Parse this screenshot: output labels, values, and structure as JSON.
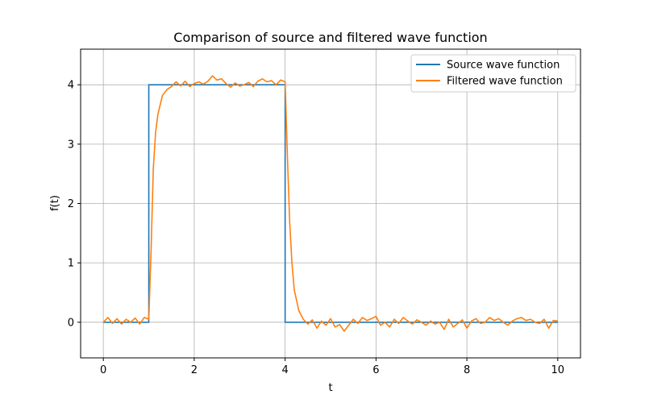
{
  "chart_data": {
    "type": "line",
    "title": "Comparison of source and filtered wave function",
    "xlabel": "t",
    "ylabel": "f(t)",
    "xlim": [
      -0.5,
      10.5
    ],
    "ylim": [
      -0.6,
      4.6
    ],
    "xticks": [
      0,
      2,
      4,
      6,
      8,
      10
    ],
    "yticks": [
      0,
      1,
      2,
      3,
      4
    ],
    "grid": true,
    "legend": "top-right",
    "series": [
      {
        "name": "Source wave function",
        "color": "#1f77b4",
        "x": [
          0,
          1,
          1,
          4,
          4,
          10
        ],
        "y": [
          0,
          0,
          4,
          4,
          0,
          0
        ]
      },
      {
        "name": "Filtered wave function",
        "color": "#ff7f0e",
        "x": [
          0,
          0.1,
          0.2,
          0.3,
          0.4,
          0.5,
          0.6,
          0.7,
          0.8,
          0.9,
          1.0,
          1.05,
          1.1,
          1.15,
          1.2,
          1.3,
          1.4,
          1.5,
          1.6,
          1.7,
          1.8,
          1.9,
          2.0,
          2.1,
          2.2,
          2.3,
          2.4,
          2.5,
          2.6,
          2.7,
          2.8,
          2.9,
          3.0,
          3.1,
          3.2,
          3.3,
          3.4,
          3.5,
          3.6,
          3.7,
          3.8,
          3.9,
          4.0,
          4.05,
          4.1,
          4.15,
          4.2,
          4.3,
          4.4,
          4.5,
          4.6,
          4.7,
          4.8,
          4.9,
          5.0,
          5.1,
          5.2,
          5.3,
          5.4,
          5.5,
          5.6,
          5.7,
          5.8,
          5.9,
          6.0,
          6.1,
          6.2,
          6.3,
          6.4,
          6.5,
          6.6,
          6.7,
          6.8,
          6.9,
          7.0,
          7.1,
          7.2,
          7.3,
          7.4,
          7.5,
          7.6,
          7.7,
          7.8,
          7.9,
          8.0,
          8.1,
          8.2,
          8.3,
          8.4,
          8.5,
          8.6,
          8.7,
          8.8,
          8.9,
          9.0,
          9.1,
          9.2,
          9.3,
          9.4,
          9.5,
          9.6,
          9.7,
          9.8,
          9.9,
          10.0
        ],
        "y": [
          0.0,
          0.08,
          -0.02,
          0.06,
          -0.03,
          0.05,
          0.0,
          0.07,
          -0.03,
          0.08,
          0.05,
          1.2,
          2.6,
          3.2,
          3.5,
          3.82,
          3.92,
          3.97,
          4.05,
          3.98,
          4.06,
          3.97,
          4.02,
          4.05,
          4.01,
          4.06,
          4.15,
          4.08,
          4.1,
          4.02,
          3.96,
          4.03,
          3.98,
          4.0,
          4.04,
          3.97,
          4.06,
          4.1,
          4.05,
          4.07,
          4.0,
          4.08,
          4.05,
          2.8,
          1.7,
          1.0,
          0.55,
          0.2,
          0.05,
          -0.03,
          0.04,
          -0.1,
          0.02,
          -0.05,
          0.06,
          -0.08,
          -0.04,
          -0.15,
          -0.05,
          0.05,
          -0.02,
          0.08,
          0.03,
          0.06,
          0.1,
          -0.05,
          0.0,
          -0.08,
          0.05,
          -0.02,
          0.08,
          0.02,
          -0.03,
          0.04,
          0.0,
          -0.05,
          0.02,
          -0.03,
          0.0,
          -0.12,
          0.05,
          -0.08,
          -0.02,
          0.04,
          -0.1,
          0.02,
          0.06,
          -0.02,
          0.0,
          0.08,
          0.03,
          0.06,
          0.0,
          -0.05,
          0.02,
          0.06,
          0.08,
          0.03,
          0.05,
          0.0,
          -0.02,
          0.05,
          -0.1,
          0.03,
          0.02
        ]
      }
    ]
  }
}
